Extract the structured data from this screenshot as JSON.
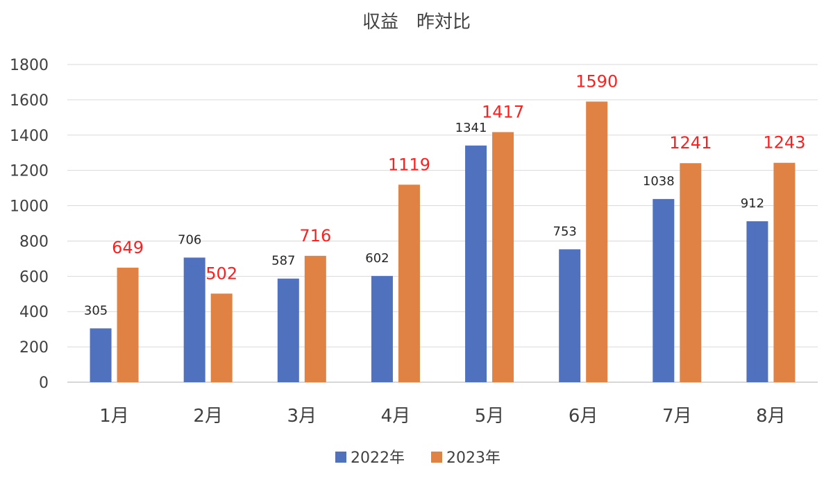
{
  "chart_data": {
    "type": "bar",
    "title": "収益　昨対比",
    "categories": [
      "1月",
      "2月",
      "3月",
      "4月",
      "5月",
      "6月",
      "7月",
      "8月"
    ],
    "series": [
      {
        "name": "2022年",
        "color": "#4f71be",
        "values": [
          305,
          706,
          587,
          602,
          1341,
          753,
          1038,
          912
        ]
      },
      {
        "name": "2023年",
        "color": "#df8244",
        "values": [
          649,
          502,
          716,
          1119,
          1417,
          1590,
          1241,
          1243
        ]
      }
    ],
    "ylim": [
      0,
      1800
    ],
    "yticks": [
      0,
      200,
      400,
      600,
      800,
      1000,
      1200,
      1400,
      1600,
      1800
    ],
    "grid": true,
    "legend": "bottom",
    "xlabel": "",
    "ylabel": ""
  }
}
